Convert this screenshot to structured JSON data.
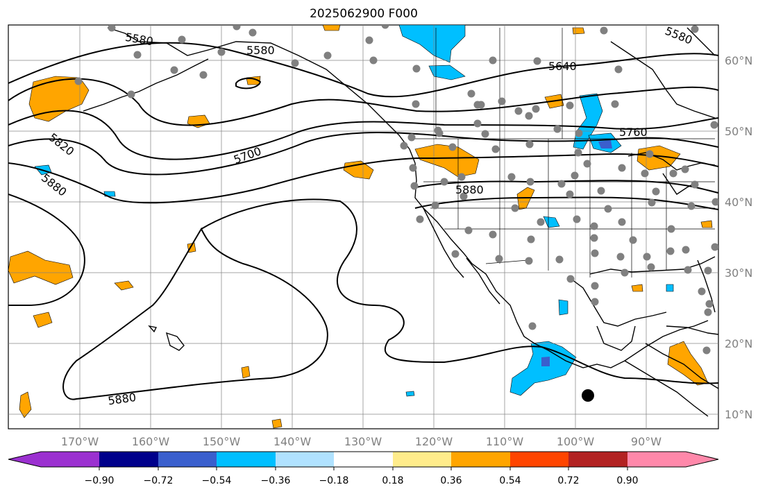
{
  "title": "2025062900 F000",
  "lat_ticks": [
    "60°N",
    "50°N",
    "40°N",
    "30°N",
    "20°N",
    "10°N"
  ],
  "lon_ticks": [
    "170°W",
    "160°W",
    "150°W",
    "140°W",
    "130°W",
    "120°W",
    "110°W",
    "100°W",
    "90°W"
  ],
  "contour_labels": [
    "5580",
    "5580",
    "5580",
    "5640",
    "5700",
    "5760",
    "5820",
    "5880",
    "5880",
    "5880"
  ],
  "colorbar": {
    "tick_labels": [
      "−0.90",
      "−0.72",
      "−0.54",
      "−0.36",
      "−0.18",
      "0.18",
      "0.36",
      "0.54",
      "0.72",
      "0.90"
    ],
    "colors": [
      "#9b30d0",
      "#00008b",
      "#3a5fcd",
      "#00bfff",
      "#b0e2ff",
      "#ffffff",
      "#ffec8b",
      "#ffa500",
      "#ff4500",
      "#b22222",
      "#ff88aa"
    ]
  },
  "station_color": "#808080",
  "marker_color": "#000000"
}
